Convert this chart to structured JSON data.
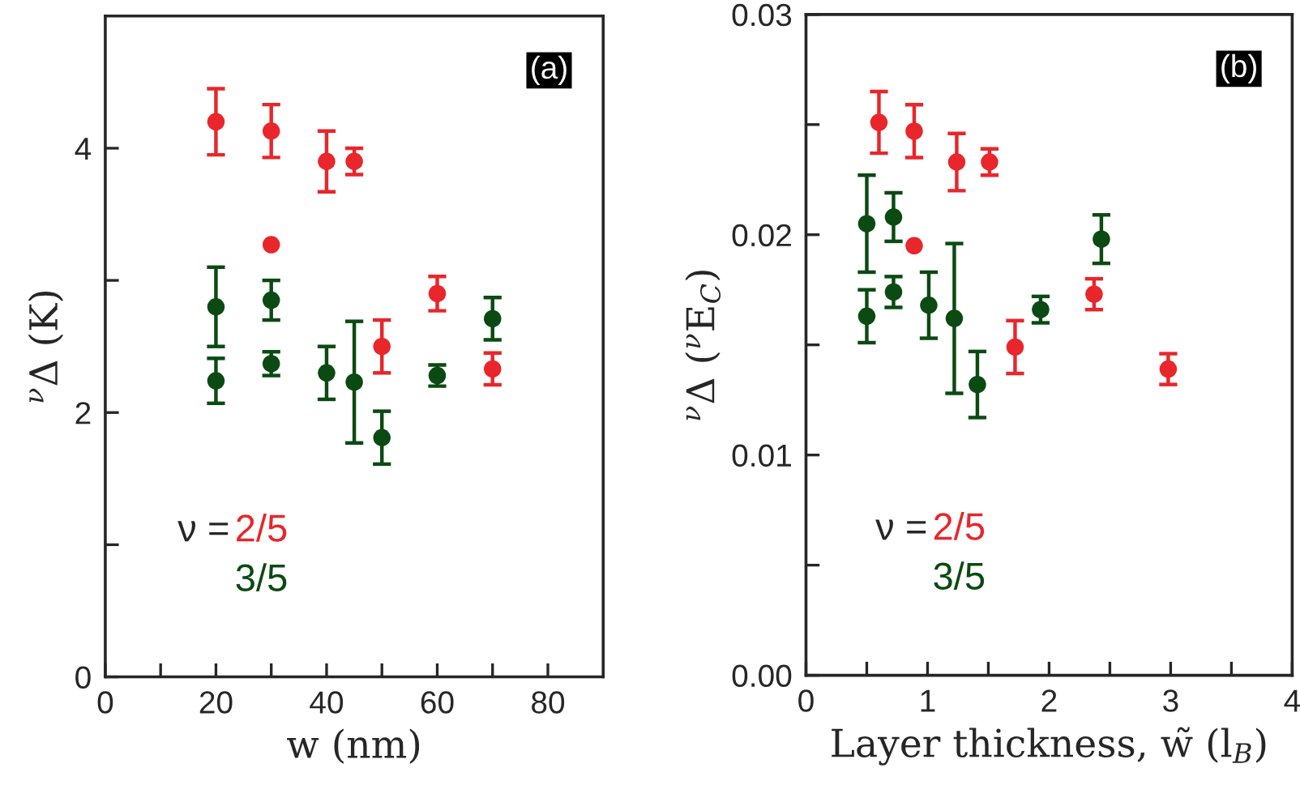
{
  "chart_data": [
    {
      "type": "scatter",
      "xlabel": "w (nm)",
      "ylabel": "$^{ν}$Δ (K)",
      "legend_title": "ν =",
      "legend": "bottom left",
      "marker": "circle",
      "annotations": [
        "(a)"
      ],
      "xlim": [
        0,
        90
      ],
      "xticks": [
        0,
        {
          "value": 10,
          "label": null
        },
        20,
        {
          "value": 30,
          "label": null
        },
        40,
        {
          "value": 50,
          "label": null
        },
        60,
        {
          "value": 70,
          "label": null
        },
        80
      ],
      "ylim": [
        0,
        5
      ],
      "yticks": [
        0,
        {
          "value": 1,
          "label": null
        },
        2,
        {
          "value": 3,
          "label": null
        },
        4
      ],
      "series": [
        {
          "name": "2/5",
          "color": "#e8262b",
          "x": [
            20,
            30,
            40,
            45,
            30,
            50,
            60,
            70
          ],
          "values": [
            4.2,
            4.13,
            3.9,
            3.9,
            3.27,
            2.5,
            2.9,
            2.33
          ],
          "errors": [
            0.25,
            0.2,
            0.23,
            0.1,
            null,
            0.2,
            0.13,
            0.12
          ]
        },
        {
          "name": "3/5",
          "color": "#0b4a12",
          "x": [
            20,
            20,
            30,
            30,
            40,
            45,
            50,
            60,
            70
          ],
          "values": [
            2.8,
            2.24,
            2.85,
            2.37,
            2.3,
            2.23,
            1.81,
            2.28,
            2.71
          ],
          "errors": [
            0.3,
            0.17,
            0.15,
            0.09,
            0.2,
            0.46,
            0.2,
            0.08,
            0.16
          ]
        }
      ]
    },
    {
      "type": "scatter",
      "xlabel": "Layer thickness, w̃ (l$_{B}$)",
      "ylabel": "$^{ν}$Δ ($^{ν}$E$_{C}$)",
      "legend_title": "ν =",
      "legend": "bottom left",
      "marker": "circle",
      "annotations": [
        "(b)"
      ],
      "xlim": [
        0,
        4
      ],
      "xticks": [
        0,
        {
          "value": 0.5,
          "label": null
        },
        1,
        {
          "value": 1.5,
          "label": null
        },
        2,
        {
          "value": 2.5,
          "label": null
        },
        3,
        {
          "value": 3.5,
          "label": null
        },
        4
      ],
      "ylim": [
        0,
        0.03
      ],
      "yticks": [
        {
          "value": 0,
          "label": "0.00"
        },
        {
          "value": 0.005,
          "label": null
        },
        0.01,
        {
          "value": 0.015,
          "label": null
        },
        {
          "value": 0.02,
          "label": "0.02"
        },
        {
          "value": 0.025,
          "label": null
        },
        {
          "value": 0.03,
          "label": "0.03"
        }
      ],
      "series": [
        {
          "name": "2/5",
          "color": "#e8262b",
          "x": [
            0.6,
            0.89,
            1.24,
            1.51,
            0.89,
            1.72,
            2.37,
            2.98
          ],
          "values": [
            0.0251,
            0.0247,
            0.0233,
            0.0233,
            0.0195,
            0.0149,
            0.0173,
            0.0139
          ],
          "errors": [
            0.0014,
            0.0012,
            0.0013,
            0.0006,
            null,
            0.0012,
            0.0007,
            0.0007
          ]
        },
        {
          "name": "3/5",
          "color": "#0b4a12",
          "x": [
            0.5,
            0.5,
            0.72,
            0.72,
            1.01,
            1.22,
            1.41,
            1.93,
            2.43
          ],
          "values": [
            0.0205,
            0.0163,
            0.0208,
            0.0174,
            0.0168,
            0.0162,
            0.0132,
            0.0166,
            0.0198
          ],
          "errors": [
            0.0022,
            0.0012,
            0.0011,
            0.0007,
            0.0015,
            0.0034,
            0.0015,
            0.0006,
            0.0011
          ]
        }
      ]
    }
  ]
}
